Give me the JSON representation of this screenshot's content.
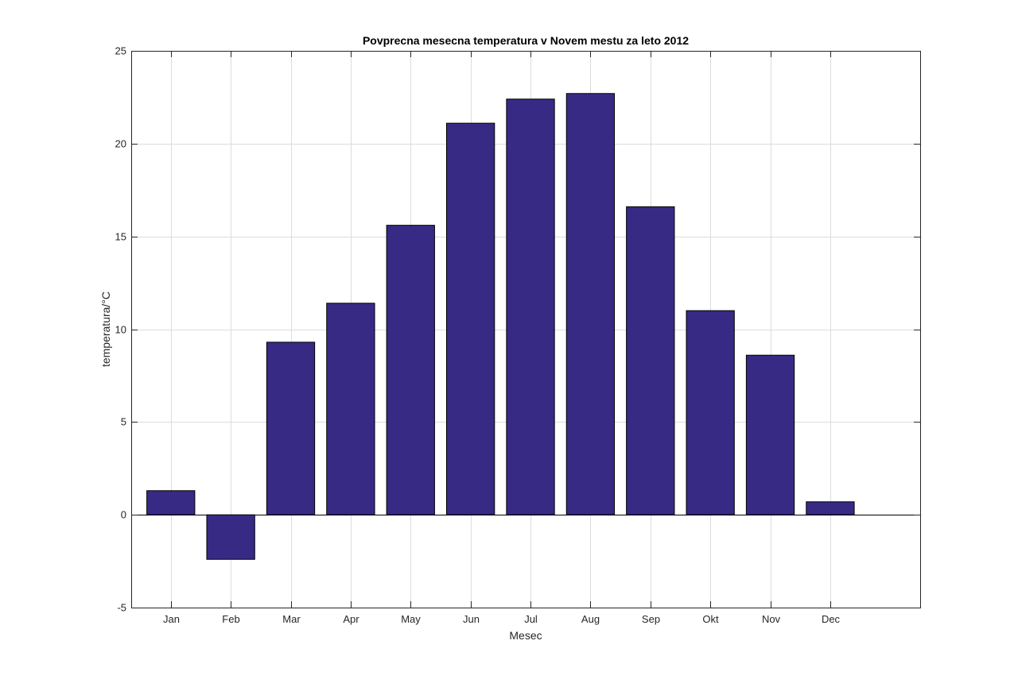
{
  "chart_data": {
    "type": "bar",
    "title": "Povprecna mesecna temperatura v Novem mestu za leto 2012",
    "xlabel": "Mesec",
    "ylabel": "temperatura/°C",
    "categories": [
      "Jan",
      "Feb",
      "Mar",
      "Apr",
      "May",
      "Jun",
      "Jul",
      "Aug",
      "Sep",
      "Okt",
      "Nov",
      "Dec"
    ],
    "values": [
      1.3,
      -2.4,
      9.3,
      11.4,
      15.6,
      21.1,
      22.4,
      22.7,
      16.6,
      11.0,
      8.6,
      0.7
    ],
    "ylim": [
      -5,
      25
    ],
    "xlim": [
      0.34,
      13.5
    ],
    "yticks": [
      "-5",
      "0",
      "5",
      "10",
      "15",
      "20",
      "25"
    ],
    "grid": true,
    "legend": "none",
    "colors": {
      "bar": "#372a85",
      "bar_edge": "#000000",
      "grid": "#dcdcdc",
      "axis": "#262626"
    }
  }
}
